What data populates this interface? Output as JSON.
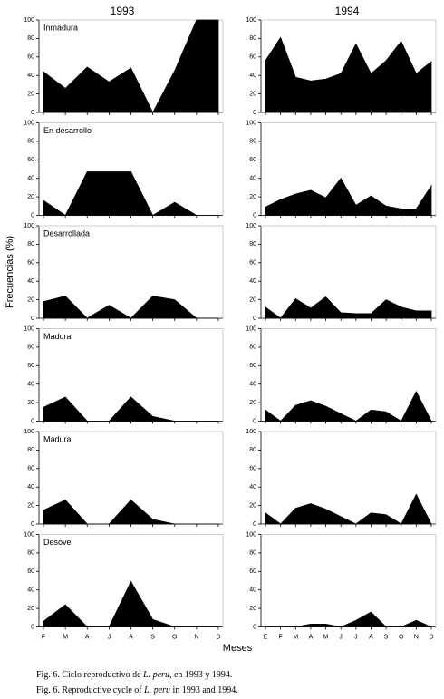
{
  "column_titles": [
    "1993",
    "1994"
  ],
  "y_label": "Frecuencias (%)",
  "x_label": "Meses",
  "captions": [
    [
      "Fig. 6. Ciclo reproductivo de ",
      "L. peru",
      ", en 1993 y 1994."
    ],
    [
      "Fig. 6. Reproductive cycle of ",
      "L. peru",
      " in 1993 and 1994."
    ]
  ],
  "chart_data": [
    {
      "type": "area",
      "title": "Inmadura",
      "categories": [
        null,
        null,
        null,
        null,
        null,
        null,
        null,
        null,
        null
      ],
      "values": [
        44,
        26,
        49,
        33,
        48,
        0,
        45,
        100,
        100
      ],
      "color": "#000000",
      "ylim": [
        0,
        100
      ],
      "yticks": [
        0,
        20,
        40,
        60,
        80,
        100
      ]
    },
    {
      "type": "area",
      "categories": [
        null,
        null,
        null,
        null,
        null,
        null,
        null,
        null,
        null,
        null,
        null,
        null
      ],
      "values": [
        56,
        81,
        38,
        34,
        36,
        42,
        74,
        42,
        56,
        77,
        42,
        55
      ],
      "color": "#000000",
      "ylim": [
        0,
        100
      ],
      "yticks": [
        0,
        20,
        40,
        60,
        80,
        100
      ]
    },
    {
      "type": "area",
      "title": "En desarrollo",
      "categories": [
        null,
        null,
        null,
        null,
        null,
        null,
        null,
        null,
        null
      ],
      "values": [
        16,
        0,
        47,
        47,
        47,
        0,
        14,
        0,
        0
      ],
      "color": "#000000",
      "ylim": [
        0,
        100
      ],
      "yticks": [
        0,
        20,
        40,
        60,
        80,
        100
      ]
    },
    {
      "type": "area",
      "categories": [
        null,
        null,
        null,
        null,
        null,
        null,
        null,
        null,
        null,
        null,
        null,
        null
      ],
      "values": [
        9,
        17,
        23,
        27,
        19,
        40,
        11,
        21,
        10,
        7,
        7,
        32
      ],
      "color": "#000000",
      "ylim": [
        0,
        100
      ],
      "yticks": [
        0,
        20,
        40,
        60,
        80,
        100
      ]
    },
    {
      "type": "area",
      "title": "Desarrollada",
      "categories": [
        null,
        null,
        null,
        null,
        null,
        null,
        null,
        null,
        null
      ],
      "values": [
        18,
        24,
        0,
        14,
        0,
        24,
        20,
        0,
        0
      ],
      "color": "#000000",
      "ylim": [
        0,
        100
      ],
      "yticks": [
        0,
        20,
        40,
        60,
        80,
        100
      ]
    },
    {
      "type": "area",
      "categories": [
        null,
        null,
        null,
        null,
        null,
        null,
        null,
        null,
        null,
        null,
        null,
        null
      ],
      "values": [
        12,
        0,
        21,
        11,
        23,
        6,
        5,
        5,
        20,
        12,
        8,
        8
      ],
      "color": "#000000",
      "ylim": [
        0,
        100
      ],
      "yticks": [
        0,
        20,
        40,
        60,
        80,
        100
      ]
    },
    {
      "type": "area",
      "title": "Madura",
      "categories": [
        null,
        null,
        null,
        null,
        null,
        null,
        null,
        null,
        null
      ],
      "values": [
        15,
        26,
        0,
        0,
        26,
        5,
        0,
        0,
        0
      ],
      "color": "#000000",
      "ylim": [
        0,
        100
      ],
      "yticks": [
        0,
        20,
        40,
        60,
        80,
        100
      ]
    },
    {
      "type": "area",
      "categories": [
        null,
        null,
        null,
        null,
        null,
        null,
        null,
        null,
        null,
        null,
        null,
        null
      ],
      "values": [
        12,
        0,
        17,
        22,
        16,
        8,
        0,
        12,
        10,
        0,
        32,
        0
      ],
      "color": "#000000",
      "ylim": [
        0,
        100
      ],
      "yticks": [
        0,
        20,
        40,
        60,
        80,
        100
      ]
    },
    {
      "type": "area",
      "title": "Madura",
      "categories": [
        null,
        null,
        null,
        null,
        null,
        null,
        null,
        null,
        null
      ],
      "values": [
        15,
        26,
        0,
        0,
        26,
        5,
        0,
        0,
        0
      ],
      "color": "#000000",
      "ylim": [
        0,
        100
      ],
      "yticks": [
        0,
        20,
        40,
        60,
        80,
        100
      ]
    },
    {
      "type": "area",
      "categories": [
        null,
        null,
        null,
        null,
        null,
        null,
        null,
        null,
        null,
        null,
        null,
        null
      ],
      "values": [
        12,
        0,
        17,
        22,
        16,
        8,
        0,
        12,
        10,
        0,
        32,
        0
      ],
      "color": "#000000",
      "ylim": [
        0,
        100
      ],
      "yticks": [
        0,
        20,
        40,
        60,
        80,
        100
      ]
    },
    {
      "type": "area",
      "title": "Desove",
      "categories": [
        "F",
        "M",
        "A",
        "J",
        "A",
        "S",
        "O",
        "N",
        "D"
      ],
      "values": [
        6,
        24,
        0,
        0,
        49,
        8,
        0,
        0,
        0
      ],
      "color": "#000000",
      "ylim": [
        0,
        100
      ],
      "yticks": [
        0,
        20,
        40,
        60,
        80,
        100
      ]
    },
    {
      "type": "area",
      "categories": [
        "E",
        "F",
        "M",
        "A",
        "M",
        "J",
        "J",
        "A",
        "S",
        "O",
        "N",
        "D"
      ],
      "values": [
        0,
        0,
        0,
        3,
        3,
        0,
        7,
        16,
        0,
        0,
        7,
        0
      ],
      "color": "#000000",
      "ylim": [
        0,
        100
      ],
      "yticks": [
        0,
        20,
        40,
        60,
        80,
        100
      ]
    }
  ]
}
